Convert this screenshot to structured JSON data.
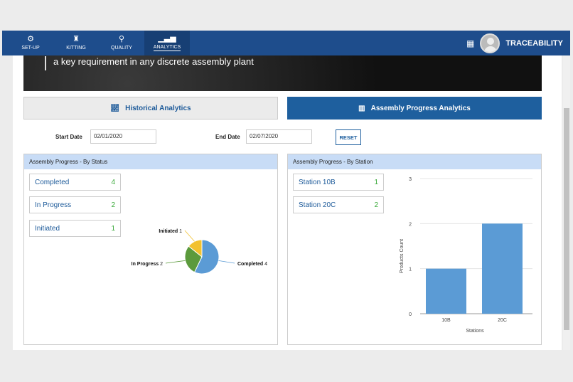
{
  "nav": {
    "items": [
      {
        "label": "SET-UP",
        "icon": "gear-icon"
      },
      {
        "label": "KITTING",
        "icon": "puzzle-icon"
      },
      {
        "label": "QUALITY",
        "icon": "search-icon"
      },
      {
        "label": "ANALYTICS",
        "icon": "bar-signal-icon",
        "active": true
      }
    ],
    "brand": "TRACEABILITY"
  },
  "banner": {
    "text": "a key requirement in any discrete assembly plant"
  },
  "tabs": [
    {
      "label": "Historical Analytics",
      "icon": "line-chart-icon"
    },
    {
      "label": "Assembly Progress Analytics",
      "icon": "bar-chart-icon",
      "active": true
    }
  ],
  "filters": {
    "start_label": "Start Date",
    "start_value": "02/01/2020",
    "end_label": "End Date",
    "end_value": "02/07/2020",
    "reset": "RESET"
  },
  "status_panel": {
    "title": "Assembly Progress - By Status",
    "items": [
      {
        "label": "Completed",
        "value": "4"
      },
      {
        "label": "In Progress",
        "value": "2"
      },
      {
        "label": "Initiated",
        "value": "1"
      }
    ]
  },
  "station_panel": {
    "title": "Assembly Progress - By Station",
    "items": [
      {
        "label": "Station 10B",
        "value": "1"
      },
      {
        "label": "Station 20C",
        "value": "2"
      }
    ]
  },
  "chart_data": [
    {
      "type": "pie",
      "labels": [
        "Completed",
        "In Progress",
        "Initiated"
      ],
      "values": [
        4,
        2,
        1
      ],
      "colors": [
        "#5b9bd5",
        "#5b9a3c",
        "#f2c12e"
      ]
    },
    {
      "type": "bar",
      "categories": [
        "10B",
        "20C"
      ],
      "values": [
        1,
        2
      ],
      "xlabel": "Stations",
      "ylabel": "Products Count",
      "ylim": [
        0,
        3
      ],
      "yticks": [
        "0",
        "1",
        "2",
        "3"
      ],
      "color": "#5b9bd5",
      "grid": true
    }
  ]
}
